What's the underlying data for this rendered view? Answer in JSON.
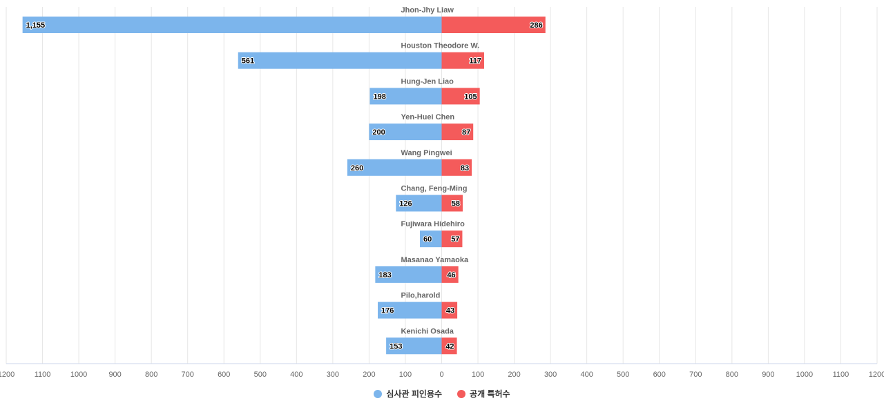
{
  "chart_data": {
    "type": "bar",
    "orientation": "horizontal-diverging",
    "categories": [
      "Jhon-Jhy Liaw",
      "Houston Theodore W.",
      "Hung-Jen Liao",
      "Yen-Huei Chen",
      "Wang Pingwei",
      "Chang, Feng-Ming",
      "Fujiwara Hidehiro",
      "Masanao Yamaoka",
      "Pilo,harold",
      "Kenichi Osada"
    ],
    "series": [
      {
        "name": "심사관 피인용수",
        "color": "#7cb5ec",
        "direction": "left",
        "values": [
          1155,
          561,
          198,
          200,
          260,
          126,
          60,
          183,
          176,
          153
        ],
        "labels": [
          "1,155",
          "561",
          "198",
          "200",
          "260",
          "126",
          "60",
          "183",
          "176",
          "153"
        ]
      },
      {
        "name": "공개 특허수",
        "color": "#f45b5b",
        "direction": "right",
        "values": [
          286,
          117,
          105,
          87,
          83,
          58,
          57,
          46,
          43,
          42
        ],
        "labels": [
          "286",
          "117",
          "105",
          "87",
          "83",
          "58",
          "57",
          "46",
          "43",
          "42"
        ]
      }
    ],
    "xlim": [
      -1200,
      1200
    ],
    "ticks": [
      -1200,
      -1100,
      -1000,
      -900,
      -800,
      -700,
      -600,
      -500,
      -400,
      -300,
      -200,
      -100,
      0,
      100,
      200,
      300,
      400,
      500,
      600,
      700,
      800,
      900,
      1000,
      1100,
      1200
    ],
    "tick_labels": [
      "1200",
      "1100",
      "1000",
      "900",
      "800",
      "700",
      "600",
      "500",
      "400",
      "300",
      "200",
      "100",
      "0",
      "100",
      "200",
      "300",
      "400",
      "500",
      "600",
      "700",
      "800",
      "900",
      "1000",
      "1100",
      "1200"
    ],
    "grid": true,
    "legend_position": "bottom-center",
    "title": "",
    "xlabel": "",
    "ylabel": ""
  }
}
